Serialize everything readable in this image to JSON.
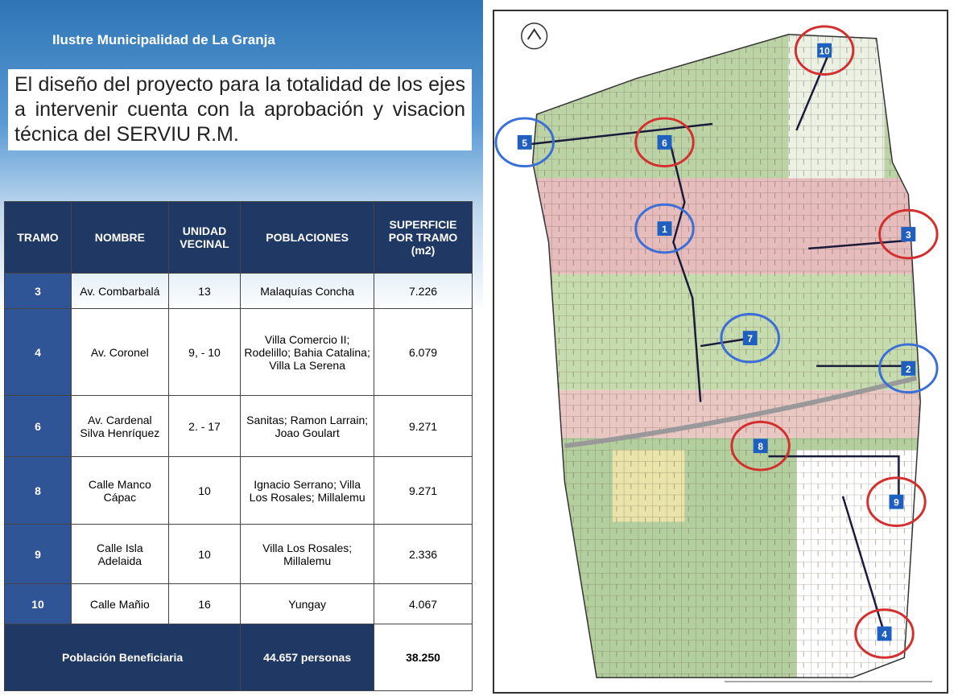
{
  "header": {
    "title": "Ilustre Municipalidad de La Granja"
  },
  "paragraph": "El diseño del proyecto para la totalidad de los ejes a intervenir cuenta con la aprobación y visacion técnica del SERVIU R.M.",
  "table": {
    "columns": [
      "TRAMO",
      "NOMBRE",
      "UNIDAD VECINAL",
      "POBLACIONES",
      "SUPERFICIE POR TRAMO (m2)"
    ],
    "rows": [
      [
        "3",
        "Av. Combarbalá",
        "13",
        "Malaquías Concha",
        "7.226"
      ],
      [
        "4",
        "Av. Coronel",
        "9, - 10",
        "Villa Comercio II; Rodelillo; Bahia Catalina; Villa La Serena",
        "6.079"
      ],
      [
        "6",
        "Av. Cardenal Silva Henríquez",
        "2. - 17",
        "Sanitas; Ramon Larrain; Joao Goulart",
        "9.271"
      ],
      [
        "8",
        "Calle Manco Cápac",
        "10",
        "Ignacio Serrano; Villa Los Rosales; Millalemu",
        "9.271"
      ],
      [
        "9",
        "Calle Isla Adelaida",
        "10",
        "Villa Los Rosales; Millalemu",
        "2.336"
      ],
      [
        "10",
        "Calle Mañio",
        "16",
        "Yungay",
        "4.067"
      ]
    ],
    "footer": {
      "label": "Población Beneficiaria",
      "people": "44.657 personas",
      "total": "38.250"
    }
  },
  "map": {
    "markers": [
      {
        "label": "10"
      },
      {
        "label": "5"
      },
      {
        "label": "6"
      },
      {
        "label": "1"
      },
      {
        "label": "3"
      },
      {
        "label": "7"
      },
      {
        "label": "2"
      },
      {
        "label": "8"
      },
      {
        "label": "9"
      },
      {
        "label": "4"
      }
    ]
  }
}
